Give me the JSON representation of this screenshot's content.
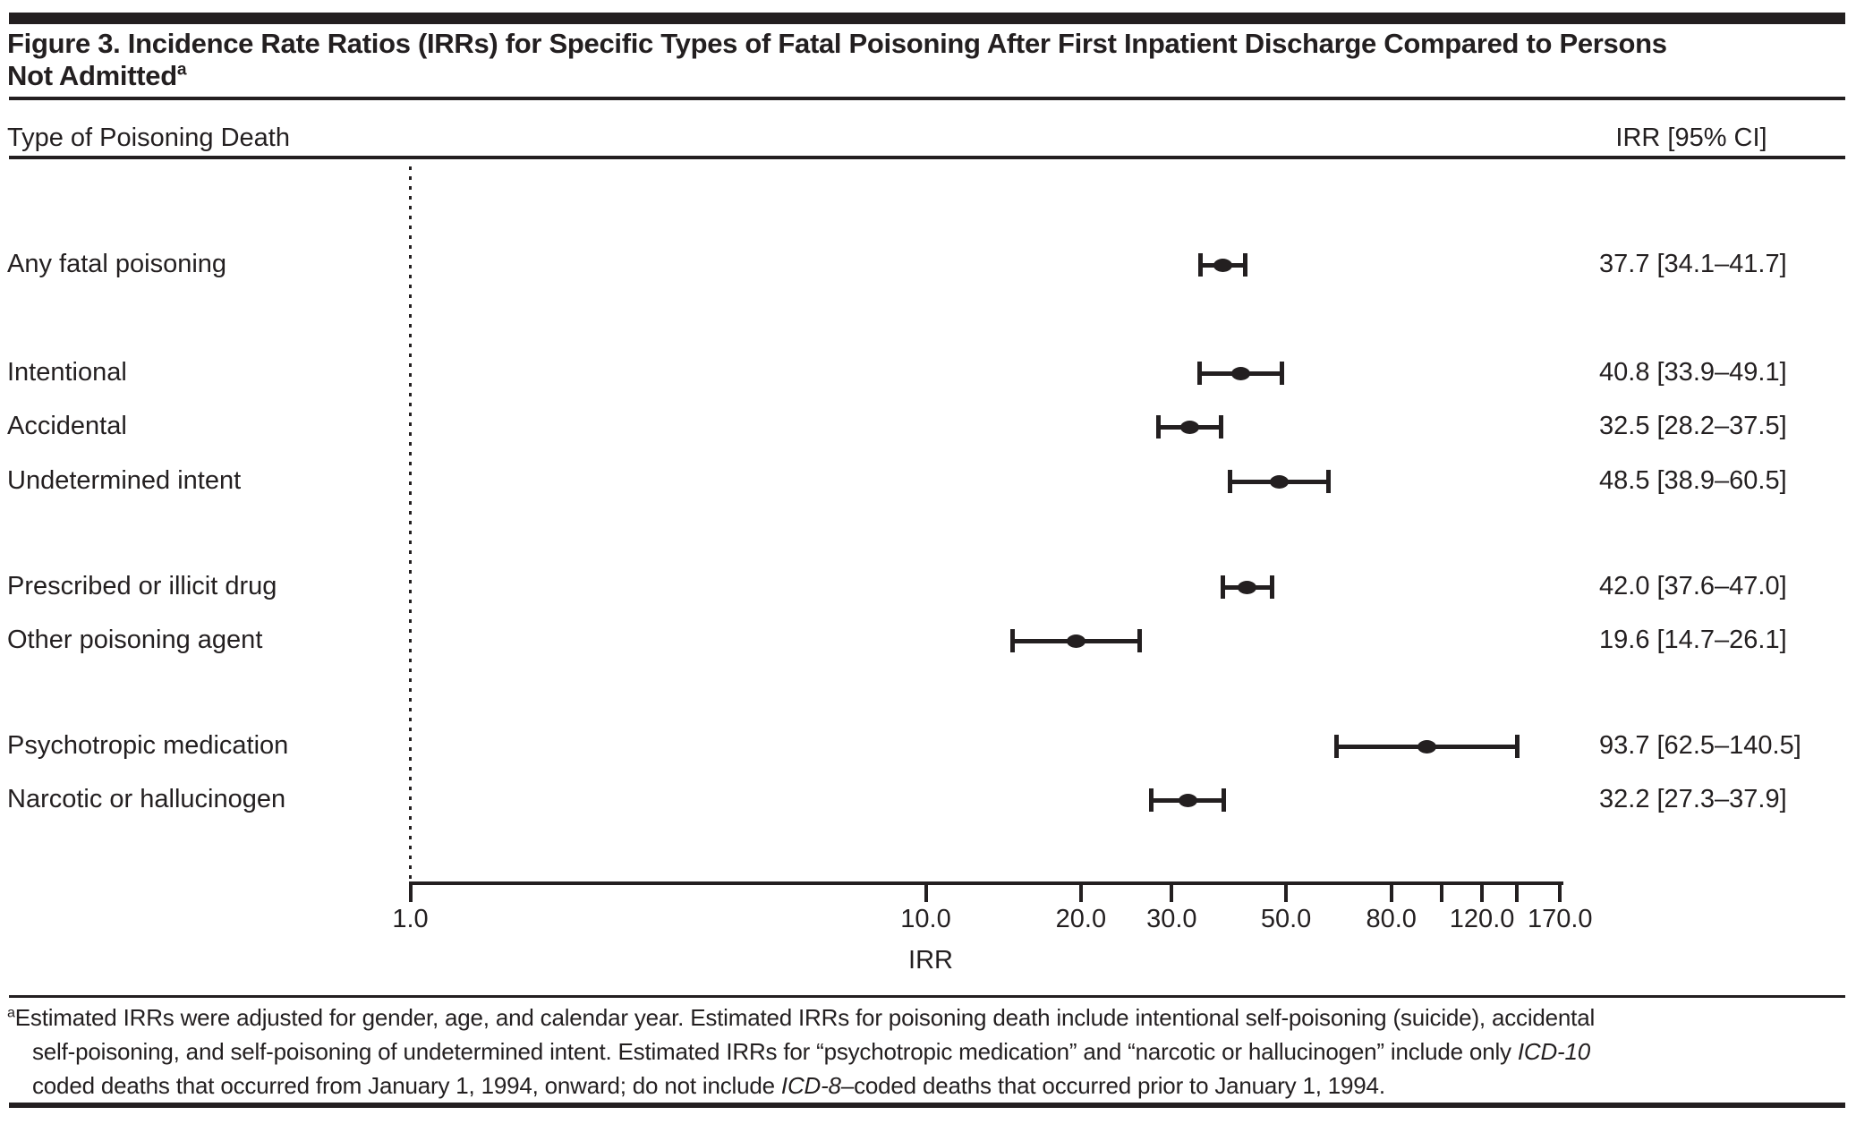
{
  "figure": {
    "title_line1": "Figure 3. Incidence Rate Ratios (IRRs) for Specific Types of Fatal Poisoning After First Inpatient Discharge Compared to Persons",
    "title_line2": "Not Admitted",
    "title_superscript": "a"
  },
  "table": {
    "left_header": "Type of Poisoning Death",
    "right_header": "IRR [95% CI]"
  },
  "chart_data": {
    "type": "scatter",
    "variant": "forest-plot",
    "title": "Figure 3. Incidence Rate Ratios (IRRs) for Specific Types of Fatal Poisoning After First Inpatient Discharge Compared to Persons Not Admitted",
    "xlabel": "IRR",
    "x_scale": "log",
    "xlim": [
      1.0,
      170.0
    ],
    "reference_line_x": 1.0,
    "grid": false,
    "x_ticks": [
      {
        "v": 1.0,
        "label": "1.0"
      },
      {
        "v": 10.0,
        "label": "10.0"
      },
      {
        "v": 20.0,
        "label": "20.0"
      },
      {
        "v": 30.0,
        "label": "30.0"
      },
      {
        "v": 50.0,
        "label": "50.0"
      },
      {
        "v": 80.0,
        "label": "80.0"
      },
      {
        "v": 100.0,
        "label": ""
      },
      {
        "v": 120.0,
        "label": "120.0"
      },
      {
        "v": 140.0,
        "label": ""
      },
      {
        "v": 170.0,
        "label": "170.0"
      }
    ],
    "rows": [
      {
        "group": 0,
        "label": "Any fatal poisoning",
        "irr": 37.7,
        "ci_low": 34.1,
        "ci_high": 41.7,
        "display": "37.7 [34.1–41.7]"
      },
      {
        "group": 1,
        "label": "Intentional",
        "irr": 40.8,
        "ci_low": 33.9,
        "ci_high": 49.1,
        "display": "40.8 [33.9–49.1]"
      },
      {
        "group": 1,
        "label": "Accidental",
        "irr": 32.5,
        "ci_low": 28.2,
        "ci_high": 37.5,
        "display": "32.5 [28.2–37.5]"
      },
      {
        "group": 1,
        "label": "Undetermined intent",
        "irr": 48.5,
        "ci_low": 38.9,
        "ci_high": 60.5,
        "display": "48.5 [38.9–60.5]"
      },
      {
        "group": 2,
        "label": "Prescribed or illicit drug",
        "irr": 42.0,
        "ci_low": 37.6,
        "ci_high": 47.0,
        "display": "42.0 [37.6–47.0]"
      },
      {
        "group": 2,
        "label": "Other poisoning agent",
        "irr": 19.6,
        "ci_low": 14.7,
        "ci_high": 26.1,
        "display": "19.6 [14.7–26.1]"
      },
      {
        "group": 3,
        "label": "Psychotropic medication",
        "irr": 93.7,
        "ci_low": 62.5,
        "ci_high": 140.5,
        "display": "93.7 [62.5–140.5]"
      },
      {
        "group": 3,
        "label": "Narcotic or hallucinogen",
        "irr": 32.2,
        "ci_low": 27.3,
        "ci_high": 37.9,
        "display": "32.2 [27.3–37.9]"
      }
    ]
  },
  "footnote": {
    "lines": [
      [
        {
          "t": "a",
          "sup": true
        },
        {
          "t": "Estimated IRRs were adjusted for gender, age, and calendar year. Estimated IRRs for poisoning death include intentional self-poisoning (suicide), accidental"
        }
      ],
      [
        {
          "t": "self-poisoning, and self-poisoning of undetermined intent. Estimated IRRs for “psychotropic medication” and “narcotic or hallucinogen” include only "
        },
        {
          "t": "ICD-10",
          "italic": true
        }
      ],
      [
        {
          "t": "coded deaths that occurred from January 1, 1994, onward; do not include "
        },
        {
          "t": "ICD-8",
          "italic": true
        },
        {
          "t": "–coded deaths that occurred prior to January 1, 1994."
        }
      ]
    ]
  },
  "colors": {
    "ink": "#231f20",
    "background": "#ffffff"
  }
}
